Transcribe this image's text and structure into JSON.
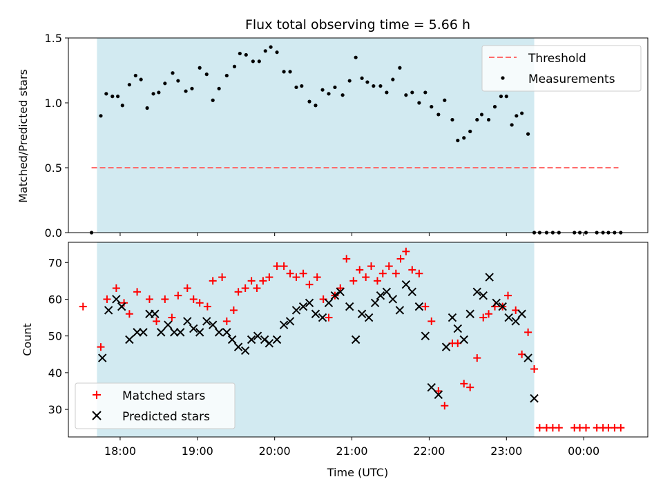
{
  "chart_data": [
    {
      "type": "scatter",
      "title": "Flux total observing time = 5.66 h",
      "ylabel": "Matched/Predicted stars",
      "xlabel": "",
      "ylim": [
        0,
        1.5
      ],
      "yticks": [
        0.0,
        0.5,
        1.0,
        1.5
      ],
      "yticklabels": [
        "0.0",
        "0.5",
        "1.0",
        "1.5"
      ],
      "xlim": [
        17.33,
        24.83
      ],
      "observing_window": [
        17.7,
        23.36
      ],
      "legend": {
        "placement": "top-right",
        "threshold_label": "Threshold",
        "measurements_label": "Measurements"
      },
      "threshold": {
        "y": 0.5,
        "x_range": [
          17.63,
          24.45
        ],
        "color": "#ff6b6b"
      },
      "colors": {
        "shade": "#add8e6",
        "measurements": "#000000"
      },
      "measurements": {
        "x": [
          17.63,
          17.75,
          17.82,
          17.9,
          17.97,
          18.03,
          18.12,
          18.2,
          18.27,
          18.35,
          18.43,
          18.5,
          18.58,
          18.68,
          18.75,
          18.85,
          18.93,
          19.03,
          19.12,
          19.2,
          19.28,
          19.38,
          19.48,
          19.55,
          19.63,
          19.72,
          19.8,
          19.88,
          19.95,
          20.03,
          20.12,
          20.2,
          20.28,
          20.35,
          20.45,
          20.53,
          20.62,
          20.7,
          20.78,
          20.88,
          20.97,
          21.05,
          21.13,
          21.2,
          21.28,
          21.37,
          21.45,
          21.53,
          21.62,
          21.7,
          21.78,
          21.87,
          21.95,
          22.03,
          22.12,
          22.2,
          22.3,
          22.37,
          22.45,
          22.53,
          22.62,
          22.68,
          22.77,
          22.85,
          22.93,
          23.0,
          23.07,
          23.13,
          23.2,
          23.28,
          23.36,
          23.43,
          23.52,
          23.6,
          23.68,
          23.88,
          23.95,
          24.03,
          24.17,
          24.25,
          24.32,
          24.4,
          24.48
        ],
        "y": [
          0.0,
          0.9,
          1.07,
          1.05,
          1.05,
          0.98,
          1.14,
          1.21,
          1.18,
          0.96,
          1.07,
          1.08,
          1.15,
          1.23,
          1.17,
          1.09,
          1.11,
          1.27,
          1.22,
          1.02,
          1.11,
          1.21,
          1.28,
          1.38,
          1.37,
          1.32,
          1.32,
          1.4,
          1.43,
          1.39,
          1.24,
          1.24,
          1.12,
          1.13,
          1.01,
          0.98,
          1.1,
          1.07,
          1.12,
          1.06,
          1.17,
          1.35,
          1.19,
          1.16,
          1.13,
          1.13,
          1.08,
          1.18,
          1.27,
          1.06,
          1.08,
          1.0,
          1.08,
          0.97,
          0.91,
          1.02,
          0.87,
          0.71,
          0.73,
          0.78,
          0.87,
          0.91,
          0.87,
          0.97,
          1.05,
          1.05,
          0.83,
          0.9,
          0.92,
          0.76,
          0.0,
          0.0,
          0.0,
          0.0,
          0.0,
          0.0,
          0.0,
          0.0,
          0.0,
          0.0,
          0.0,
          0.0,
          0.0
        ]
      }
    },
    {
      "type": "scatter",
      "xlabel": "Time (UTC)",
      "ylabel": "Count",
      "ylim": [
        22.5,
        75.5
      ],
      "yticks": [
        30,
        40,
        50,
        60,
        70
      ],
      "yticklabels": [
        "30",
        "40",
        "50",
        "60",
        "70"
      ],
      "xlim": [
        17.33,
        24.83
      ],
      "xticks": [
        18,
        19,
        20,
        21,
        22,
        23,
        24
      ],
      "xticklabels": [
        "18:00",
        "19:00",
        "20:00",
        "21:00",
        "22:00",
        "23:00",
        "00:00"
      ],
      "observing_window": [
        17.7,
        23.36
      ],
      "legend": {
        "placement": "bottom-left"
      },
      "colors": {
        "shade": "#add8e6",
        "matched": "#ff0000",
        "predicted": "#000000"
      },
      "series": [
        {
          "name": "Matched stars",
          "marker": "plus",
          "x": [
            17.52,
            17.75,
            17.83,
            17.95,
            18.05,
            18.12,
            18.22,
            18.38,
            18.47,
            18.58,
            18.67,
            18.75,
            18.87,
            18.95,
            19.03,
            19.13,
            19.2,
            19.32,
            19.38,
            19.47,
            19.53,
            19.62,
            19.7,
            19.77,
            19.85,
            19.93,
            20.03,
            20.12,
            20.2,
            20.28,
            20.37,
            20.45,
            20.55,
            20.63,
            20.7,
            20.78,
            20.85,
            20.93,
            21.02,
            21.1,
            21.18,
            21.25,
            21.33,
            21.4,
            21.48,
            21.57,
            21.63,
            21.7,
            21.78,
            21.87,
            21.95,
            22.03,
            22.12,
            22.2,
            22.3,
            22.37,
            22.45,
            22.53,
            22.62,
            22.7,
            22.77,
            22.85,
            22.95,
            23.02,
            23.12,
            23.2,
            23.28,
            23.36,
            23.43,
            23.52,
            23.6,
            23.68,
            23.88,
            23.95,
            24.03,
            24.17,
            24.25,
            24.32,
            24.4,
            24.48
          ],
          "y": [
            58,
            47,
            60,
            63,
            59,
            56,
            62,
            60,
            54,
            60,
            55,
            61,
            63,
            60,
            59,
            58,
            65,
            66,
            54,
            57,
            62,
            63,
            65,
            63,
            65,
            66,
            69,
            69,
            67,
            66,
            67,
            64,
            66,
            60,
            55,
            61,
            63,
            71,
            65,
            68,
            66,
            69,
            65,
            67,
            69,
            67,
            71,
            73,
            68,
            67,
            58,
            54,
            35,
            31,
            48,
            48,
            37,
            36,
            44,
            55,
            56,
            58,
            58,
            61,
            57,
            45,
            51,
            41,
            25,
            25,
            25,
            25,
            25,
            25,
            25,
            25,
            25,
            25,
            25,
            25
          ]
        },
        {
          "name": "Predicted stars",
          "marker": "x",
          "x": [
            17.77,
            17.85,
            17.95,
            18.02,
            18.12,
            18.22,
            18.3,
            18.38,
            18.45,
            18.53,
            18.62,
            18.7,
            18.78,
            18.87,
            18.95,
            19.03,
            19.12,
            19.2,
            19.28,
            19.38,
            19.45,
            19.53,
            19.62,
            19.7,
            19.78,
            19.87,
            19.93,
            20.03,
            20.12,
            20.2,
            20.28,
            20.37,
            20.45,
            20.53,
            20.62,
            20.7,
            20.78,
            20.85,
            20.97,
            21.05,
            21.13,
            21.22,
            21.3,
            21.37,
            21.45,
            21.53,
            21.62,
            21.7,
            21.78,
            21.87,
            21.95,
            22.03,
            22.12,
            22.22,
            22.3,
            22.37,
            22.45,
            22.53,
            22.62,
            22.7,
            22.78,
            22.87,
            22.95,
            23.03,
            23.12,
            23.2,
            23.28,
            23.36
          ],
          "y": [
            44,
            57,
            60,
            58,
            49,
            51,
            51,
            56,
            56,
            51,
            53,
            51,
            51,
            54,
            52,
            51,
            54,
            53,
            51,
            51,
            49,
            47,
            46,
            49,
            50,
            49,
            48,
            49,
            53,
            54,
            57,
            58,
            59,
            56,
            55,
            59,
            61,
            62,
            58,
            49,
            56,
            55,
            59,
            61,
            62,
            60,
            57,
            64,
            62,
            58,
            50,
            36,
            34,
            47,
            55,
            52,
            49,
            56,
            62,
            61,
            66,
            59,
            58,
            55,
            54,
            56,
            44,
            33
          ]
        }
      ]
    }
  ]
}
